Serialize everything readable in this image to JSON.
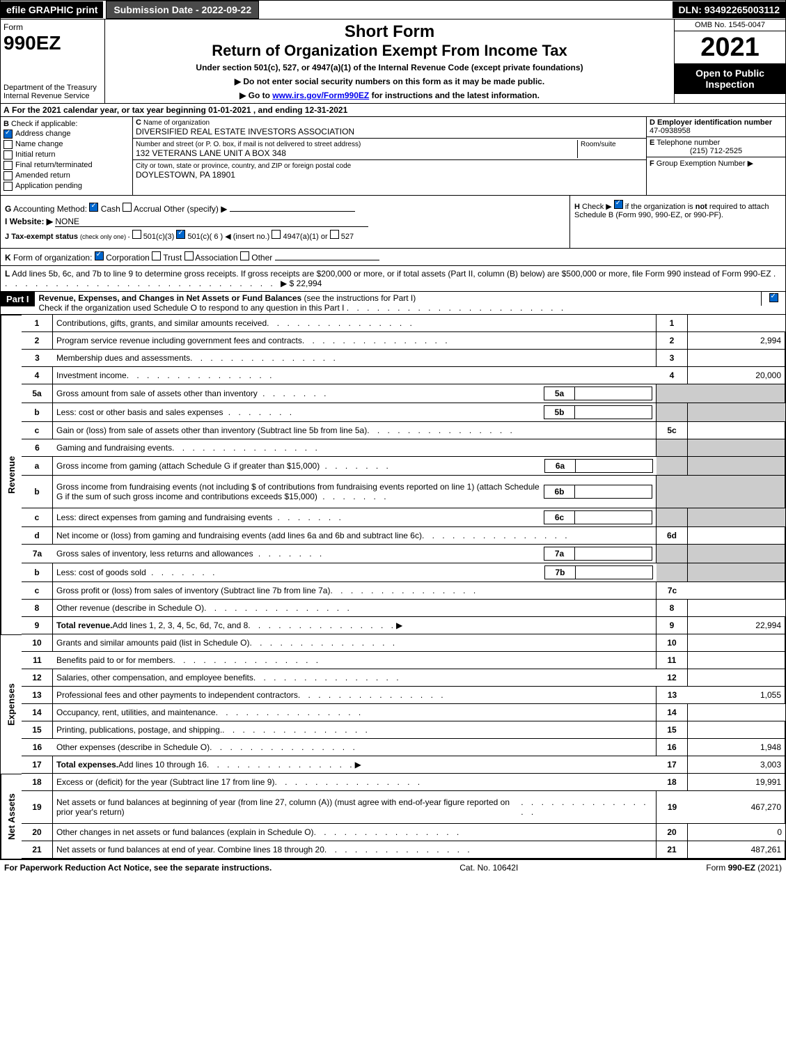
{
  "top": {
    "efile": "efile GRAPHIC print",
    "subdate": "Submission Date - 2022-09-22",
    "dln": "DLN: 93492265003112"
  },
  "header": {
    "form_label": "Form",
    "form_no": "990EZ",
    "dept": "Department of the Treasury\nInternal Revenue Service",
    "title": "Short Form",
    "title2": "Return of Organization Exempt From Income Tax",
    "subtitle": "Under section 501(c), 527, or 4947(a)(1) of the Internal Revenue Code (except private foundations)",
    "inst1": "▶ Do not enter social security numbers on this form as it may be made public.",
    "inst2_pre": "▶ Go to ",
    "inst2_link": "www.irs.gov/Form990EZ",
    "inst2_post": " for instructions and the latest information.",
    "omb": "OMB No. 1545-0047",
    "year": "2021",
    "open": "Open to Public Inspection"
  },
  "a": {
    "letter": "A",
    "text_pre": "For the 2021 calendar year, or tax year beginning ",
    "begin": "01-01-2021",
    "mid": " , and ending ",
    "end": "12-31-2021"
  },
  "b": {
    "letter": "B",
    "heading": "Check if applicable:",
    "items": [
      {
        "label": "Address change",
        "checked": true
      },
      {
        "label": "Name change",
        "checked": false
      },
      {
        "label": "Initial return",
        "checked": false
      },
      {
        "label": "Final return/terminated",
        "checked": false
      },
      {
        "label": "Amended return",
        "checked": false
      },
      {
        "label": "Application pending",
        "checked": false
      }
    ]
  },
  "c": {
    "letter": "C",
    "name_lbl": "Name of organization",
    "name_val": "DIVERSIFIED REAL ESTATE INVESTORS ASSOCIATION",
    "addr_lbl": "Number and street (or P. O. box, if mail is not delivered to street address)",
    "room_lbl": "Room/suite",
    "addr_val": "132 VETERANS LANE UNIT A BOX 348",
    "city_lbl": "City or town, state or province, country, and ZIP or foreign postal code",
    "city_val": "DOYLESTOWN, PA  18901"
  },
  "d": {
    "letter": "D",
    "label": "Employer identification number",
    "val": "47-0938958"
  },
  "e": {
    "letter": "E",
    "label": "Telephone number",
    "val": "(215) 712-2525"
  },
  "f": {
    "letter": "F",
    "label": "Group Exemption Number",
    "arrow": "▶",
    "val": ""
  },
  "g": {
    "letter": "G",
    "label": "Accounting Method:",
    "cash": "Cash",
    "accrual": "Accrual",
    "other": "Other (specify) ▶"
  },
  "h": {
    "letter": "H",
    "text1": "Check ▶",
    "text2": "if the organization is ",
    "not": "not",
    "text3": " required to attach Schedule B (Form 990, 990-EZ, or 990-PF)."
  },
  "i": {
    "letter": "I",
    "label": "Website: ▶",
    "val": "NONE"
  },
  "j": {
    "letter": "J",
    "label": "Tax-exempt status",
    "small": "(check only one) -",
    "opt1": "501(c)(3)",
    "opt2": "501(c)( 6 ) ◀ (insert no.)",
    "opt3": "4947(a)(1) or",
    "opt4": "527"
  },
  "k": {
    "letter": "K",
    "label": "Form of organization:",
    "opts": [
      "Corporation",
      "Trust",
      "Association",
      "Other"
    ]
  },
  "l": {
    "letter": "L",
    "text": "Add lines 5b, 6c, and 7b to line 9 to determine gross receipts. If gross receipts are $200,000 or more, or if total assets (Part II, column (B) below) are $500,000 or more, file Form 990 instead of Form 990-EZ",
    "arrow": "▶ $",
    "val": "22,994"
  },
  "part1": {
    "label": "Part I",
    "title": "Revenue, Expenses, and Changes in Net Assets or Fund Balances",
    "title_suffix": " (see the instructions for Part I)",
    "subtitle": "Check if the organization used Schedule O to respond to any question in this Part I"
  },
  "sections": {
    "revenue": "Revenue",
    "expenses": "Expenses",
    "netassets": "Net Assets"
  },
  "lines": [
    {
      "sec": "rev",
      "n": "1",
      "d": "Contributions, gifts, grants, and similar amounts received",
      "box": "1",
      "amt": ""
    },
    {
      "sec": "rev",
      "n": "2",
      "d": "Program service revenue including government fees and contracts",
      "box": "2",
      "amt": "2,994"
    },
    {
      "sec": "rev",
      "n": "3",
      "d": "Membership dues and assessments",
      "box": "3",
      "amt": ""
    },
    {
      "sec": "rev",
      "n": "4",
      "d": "Investment income",
      "box": "4",
      "amt": "20,000"
    },
    {
      "sec": "rev",
      "n": "5a",
      "d": "Gross amount from sale of assets other than inventory",
      "sub": "5a",
      "shaded": true
    },
    {
      "sec": "rev",
      "n": "b",
      "d": "Less: cost or other basis and sales expenses",
      "sub": "5b",
      "shaded": true
    },
    {
      "sec": "rev",
      "n": "c",
      "d": "Gain or (loss) from sale of assets other than inventory (Subtract line 5b from line 5a)",
      "box": "5c",
      "amt": ""
    },
    {
      "sec": "rev",
      "n": "6",
      "d": "Gaming and fundraising events",
      "shaded": true,
      "noBox": true
    },
    {
      "sec": "rev",
      "n": "a",
      "d": "Gross income from gaming (attach Schedule G if greater than $15,000)",
      "sub": "6a",
      "shaded": true
    },
    {
      "sec": "rev",
      "n": "b",
      "d": "Gross income from fundraising events (not including $                   of contributions from fundraising events reported on line 1) (attach Schedule G if the sum of such gross income and contributions exceeds $15,000)",
      "sub": "6b",
      "shaded": true,
      "tall": true
    },
    {
      "sec": "rev",
      "n": "c",
      "d": "Less: direct expenses from gaming and fundraising events",
      "sub": "6c",
      "shaded": true
    },
    {
      "sec": "rev",
      "n": "d",
      "d": "Net income or (loss) from gaming and fundraising events (add lines 6a and 6b and subtract line 6c)",
      "box": "6d",
      "amt": ""
    },
    {
      "sec": "rev",
      "n": "7a",
      "d": "Gross sales of inventory, less returns and allowances",
      "sub": "7a",
      "shaded": true
    },
    {
      "sec": "rev",
      "n": "b",
      "d": "Less: cost of goods sold",
      "sub": "7b",
      "shaded": true
    },
    {
      "sec": "rev",
      "n": "c",
      "d": "Gross profit or (loss) from sales of inventory (Subtract line 7b from line 7a)",
      "box": "7c",
      "amt": ""
    },
    {
      "sec": "rev",
      "n": "8",
      "d": "Other revenue (describe in Schedule O)",
      "box": "8",
      "amt": ""
    },
    {
      "sec": "rev",
      "n": "9",
      "d": "Total revenue.",
      "d2": " Add lines 1, 2, 3, 4, 5c, 6d, 7c, and 8",
      "box": "9",
      "amt": "22,994",
      "bold": true,
      "arrow": true
    },
    {
      "sec": "exp",
      "n": "10",
      "d": "Grants and similar amounts paid (list in Schedule O)",
      "box": "10",
      "amt": ""
    },
    {
      "sec": "exp",
      "n": "11",
      "d": "Benefits paid to or for members",
      "box": "11",
      "amt": ""
    },
    {
      "sec": "exp",
      "n": "12",
      "d": "Salaries, other compensation, and employee benefits",
      "box": "12",
      "amt": ""
    },
    {
      "sec": "exp",
      "n": "13",
      "d": "Professional fees and other payments to independent contractors",
      "box": "13",
      "amt": "1,055"
    },
    {
      "sec": "exp",
      "n": "14",
      "d": "Occupancy, rent, utilities, and maintenance",
      "box": "14",
      "amt": ""
    },
    {
      "sec": "exp",
      "n": "15",
      "d": "Printing, publications, postage, and shipping.",
      "box": "15",
      "amt": ""
    },
    {
      "sec": "exp",
      "n": "16",
      "d": "Other expenses (describe in Schedule O)",
      "box": "16",
      "amt": "1,948"
    },
    {
      "sec": "exp",
      "n": "17",
      "d": "Total expenses.",
      "d2": " Add lines 10 through 16",
      "box": "17",
      "amt": "3,003",
      "bold": true,
      "arrow": true
    },
    {
      "sec": "net",
      "n": "18",
      "d": "Excess or (deficit) for the year (Subtract line 17 from line 9)",
      "box": "18",
      "amt": "19,991"
    },
    {
      "sec": "net",
      "n": "19",
      "d": "Net assets or fund balances at beginning of year (from line 27, column (A)) (must agree with end-of-year figure reported on prior year's return)",
      "box": "19",
      "amt": "467,270",
      "tall": true
    },
    {
      "sec": "net",
      "n": "20",
      "d": "Other changes in net assets or fund balances (explain in Schedule O)",
      "box": "20",
      "amt": "0"
    },
    {
      "sec": "net",
      "n": "21",
      "d": "Net assets or fund balances at end of year. Combine lines 18 through 20",
      "box": "21",
      "amt": "487,261"
    }
  ],
  "footer": {
    "left": "For Paperwork Reduction Act Notice, see the separate instructions.",
    "mid": "Cat. No. 10642I",
    "right_pre": "Form ",
    "right_form": "990-EZ",
    "right_post": " (2021)"
  }
}
